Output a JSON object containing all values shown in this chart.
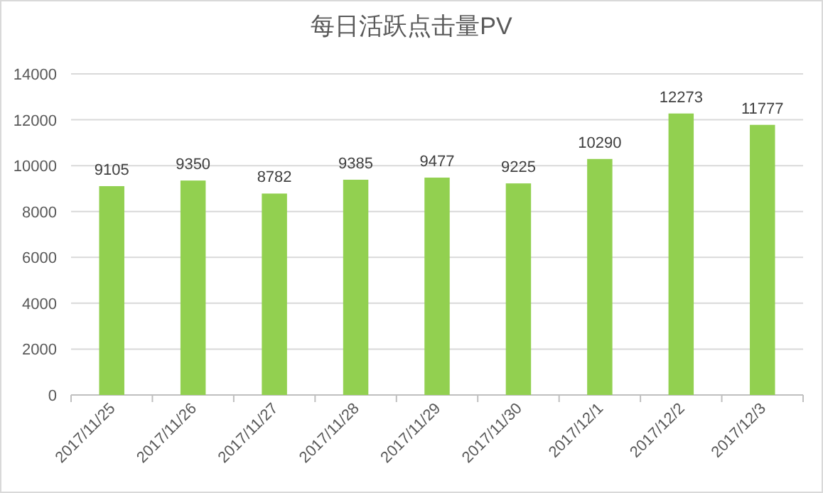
{
  "chart_data": {
    "type": "bar",
    "title": "每日活跃点击量PV",
    "categories": [
      "2017/11/25",
      "2017/11/26",
      "2017/11/27",
      "2017/11/28",
      "2017/11/29",
      "2017/11/30",
      "2017/12/1",
      "2017/12/2",
      "2017/12/3"
    ],
    "values": [
      9105,
      9350,
      8782,
      9385,
      9477,
      9225,
      10290,
      12273,
      11777
    ],
    "color": "#92d050",
    "ylim": [
      0,
      14000
    ],
    "yticks": [
      0,
      2000,
      4000,
      6000,
      8000,
      10000,
      12000,
      14000
    ],
    "grid": "y",
    "data_labels": true
  }
}
